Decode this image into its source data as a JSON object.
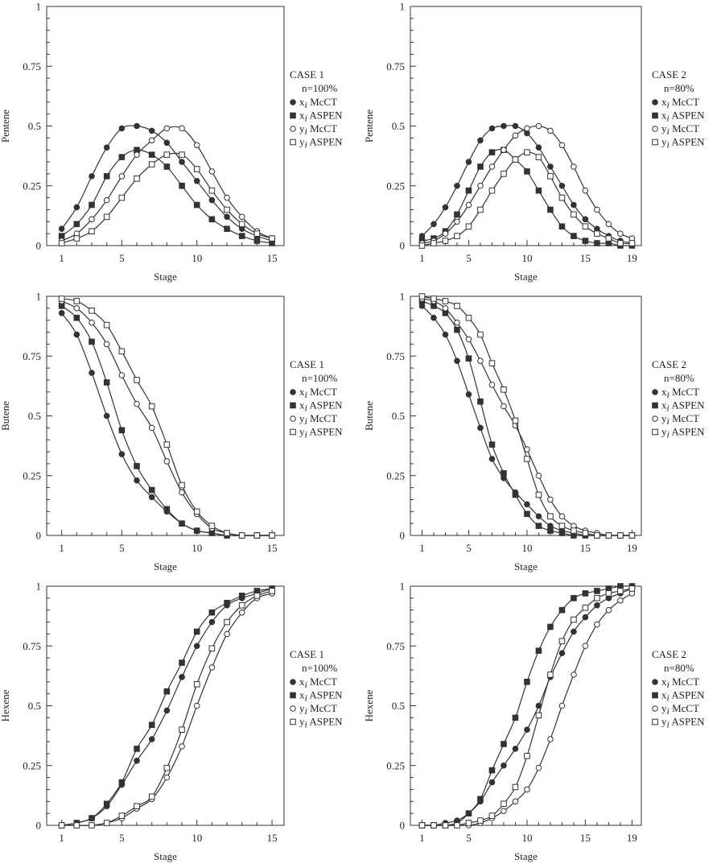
{
  "chart_data": [
    {
      "type": "line",
      "case": "CASE 1",
      "n": "n=100%",
      "ylabel": "Pentene",
      "xlabel": "Stage",
      "xlim": [
        0,
        15.8
      ],
      "ylim": [
        0,
        1
      ],
      "xticks": [
        1,
        5,
        10,
        15
      ],
      "yticks": [
        "0",
        "0.25",
        "0.5",
        "0.75",
        "1"
      ],
      "x": [
        1,
        2,
        3,
        4,
        5,
        6,
        7,
        8,
        9,
        10,
        11,
        12,
        13,
        14,
        15
      ],
      "series": [
        {
          "name": "x_i McCT",
          "label_var": "x",
          "label_sub": "i",
          "label_rest": " McCT",
          "marker": "circle-filled",
          "values": [
            0.07,
            0.16,
            0.29,
            0.41,
            0.49,
            0.5,
            0.48,
            0.43,
            0.35,
            0.27,
            0.19,
            0.12,
            0.07,
            0.04,
            0.02
          ]
        },
        {
          "name": "x_i ASPEN",
          "label_var": "x",
          "label_sub": "i",
          "label_rest": " ASPEN",
          "marker": "square-filled",
          "values": [
            0.04,
            0.09,
            0.17,
            0.29,
            0.37,
            0.4,
            0.38,
            0.33,
            0.25,
            0.17,
            0.11,
            0.07,
            0.04,
            0.02,
            0.01
          ]
        },
        {
          "name": "y_i McCT",
          "label_var": "y",
          "label_sub": "i",
          "label_rest": " McCT",
          "marker": "circle-open",
          "values": [
            0.02,
            0.05,
            0.11,
            0.19,
            0.29,
            0.38,
            0.44,
            0.49,
            0.49,
            0.42,
            0.31,
            0.2,
            0.12,
            0.06,
            0.03
          ]
        },
        {
          "name": "y_i ASPEN",
          "label_var": "y",
          "label_sub": "i",
          "label_rest": " ASPEN",
          "marker": "square-open",
          "values": [
            0.01,
            0.03,
            0.06,
            0.12,
            0.2,
            0.28,
            0.34,
            0.38,
            0.38,
            0.32,
            0.23,
            0.15,
            0.09,
            0.05,
            0.03
          ]
        }
      ]
    },
    {
      "type": "line",
      "case": "CASE 2",
      "n": "n=80%",
      "ylabel": "Pentene",
      "xlabel": "Stage",
      "xlim": [
        0,
        19.8
      ],
      "ylim": [
        0,
        1
      ],
      "xticks": [
        1,
        5,
        10,
        15,
        19
      ],
      "yticks": [
        "0",
        "0.25",
        "0.5",
        "0.75",
        "1"
      ],
      "x": [
        1,
        2,
        3,
        4,
        5,
        6,
        7,
        8,
        9,
        10,
        11,
        12,
        13,
        14,
        15,
        16,
        17,
        18,
        19
      ],
      "series": [
        {
          "name": "x_i McCT",
          "label_var": "x",
          "label_sub": "i",
          "label_rest": " McCT",
          "marker": "circle-filled",
          "values": [
            0.04,
            0.09,
            0.16,
            0.25,
            0.35,
            0.44,
            0.49,
            0.5,
            0.5,
            0.47,
            0.41,
            0.33,
            0.25,
            0.17,
            0.11,
            0.07,
            0.04,
            0.02,
            0.01
          ]
        },
        {
          "name": "x_i ASPEN",
          "label_var": "x",
          "label_sub": "i",
          "label_rest": " ASPEN",
          "marker": "square-filled",
          "values": [
            0.02,
            0.03,
            0.06,
            0.13,
            0.23,
            0.33,
            0.39,
            0.4,
            0.36,
            0.31,
            0.23,
            0.15,
            0.08,
            0.04,
            0.02,
            0.01,
            0.01,
            0.0,
            0.0
          ]
        },
        {
          "name": "y_i McCT",
          "label_var": "y",
          "label_sub": "i",
          "label_rest": " McCT",
          "marker": "circle-open",
          "values": [
            0.01,
            0.02,
            0.05,
            0.1,
            0.17,
            0.25,
            0.33,
            0.4,
            0.46,
            0.49,
            0.5,
            0.48,
            0.42,
            0.33,
            0.23,
            0.15,
            0.09,
            0.05,
            0.03
          ]
        },
        {
          "name": "y_i ASPEN",
          "label_var": "y",
          "label_sub": "i",
          "label_rest": " ASPEN",
          "marker": "square-open",
          "values": [
            0.0,
            0.01,
            0.02,
            0.04,
            0.08,
            0.15,
            0.23,
            0.3,
            0.36,
            0.39,
            0.37,
            0.29,
            0.2,
            0.13,
            0.08,
            0.05,
            0.03,
            0.01,
            0.01
          ]
        }
      ]
    },
    {
      "type": "line",
      "case": "CASE 1",
      "n": "n=100%",
      "ylabel": "Butene",
      "xlabel": "Stage",
      "xlim": [
        0,
        15.8
      ],
      "ylim": [
        0,
        1
      ],
      "xticks": [
        1,
        5,
        10,
        15
      ],
      "yticks": [
        "0",
        "0.25",
        "0.5",
        "0.75",
        "1"
      ],
      "x": [
        1,
        2,
        3,
        4,
        5,
        6,
        7,
        8,
        9,
        10,
        11,
        12,
        13,
        14,
        15
      ],
      "series": [
        {
          "name": "x_i McCT",
          "label_var": "x",
          "label_sub": "i",
          "label_rest": " McCT",
          "marker": "circle-filled",
          "values": [
            0.93,
            0.84,
            0.68,
            0.5,
            0.34,
            0.23,
            0.16,
            0.1,
            0.05,
            0.02,
            0.01,
            0.0,
            0.0,
            0.0,
            0.0
          ]
        },
        {
          "name": "x_i ASPEN",
          "label_var": "x",
          "label_sub": "i",
          "label_rest": " ASPEN",
          "marker": "square-filled",
          "values": [
            0.96,
            0.91,
            0.81,
            0.64,
            0.44,
            0.29,
            0.19,
            0.11,
            0.05,
            0.02,
            0.01,
            0.0,
            0.0,
            0.0,
            0.0
          ]
        },
        {
          "name": "y_i McCT",
          "label_var": "y",
          "label_sub": "i",
          "label_rest": " McCT",
          "marker": "circle-open",
          "values": [
            0.98,
            0.95,
            0.89,
            0.8,
            0.67,
            0.55,
            0.45,
            0.31,
            0.18,
            0.09,
            0.03,
            0.01,
            0.0,
            0.0,
            0.0
          ]
        },
        {
          "name": "y_i ASPEN",
          "label_var": "y",
          "label_sub": "i",
          "label_rest": " ASPEN",
          "marker": "square-open",
          "values": [
            0.99,
            0.98,
            0.94,
            0.88,
            0.77,
            0.65,
            0.54,
            0.38,
            0.21,
            0.1,
            0.04,
            0.01,
            0.0,
            0.0,
            0.0
          ]
        }
      ]
    },
    {
      "type": "line",
      "case": "CASE 2",
      "n": "n=80%",
      "ylabel": "Butene",
      "xlabel": "Stage",
      "xlim": [
        0,
        19.8
      ],
      "ylim": [
        0,
        1
      ],
      "xticks": [
        1,
        5,
        10,
        15,
        19
      ],
      "yticks": [
        "0",
        "0.25",
        "0.5",
        "0.75",
        "1"
      ],
      "x": [
        1,
        2,
        3,
        4,
        5,
        6,
        7,
        8,
        9,
        10,
        11,
        12,
        13,
        14,
        15,
        16,
        17,
        18,
        19
      ],
      "series": [
        {
          "name": "x_i McCT",
          "label_var": "x",
          "label_sub": "i",
          "label_rest": " McCT",
          "marker": "circle-filled",
          "values": [
            0.96,
            0.91,
            0.84,
            0.73,
            0.59,
            0.45,
            0.32,
            0.24,
            0.18,
            0.13,
            0.08,
            0.04,
            0.02,
            0.01,
            0.0,
            0.0,
            0.0,
            0.0,
            0.0
          ]
        },
        {
          "name": "x_i ASPEN",
          "label_var": "x",
          "label_sub": "i",
          "label_rest": " ASPEN",
          "marker": "square-filled",
          "values": [
            0.98,
            0.96,
            0.93,
            0.86,
            0.74,
            0.56,
            0.38,
            0.26,
            0.17,
            0.09,
            0.04,
            0.02,
            0.01,
            0.0,
            0.0,
            0.0,
            0.0,
            0.0,
            0.0
          ]
        },
        {
          "name": "y_i McCT",
          "label_var": "y",
          "label_sub": "i",
          "label_rest": " McCT",
          "marker": "circle-open",
          "values": [
            0.99,
            0.98,
            0.95,
            0.89,
            0.82,
            0.73,
            0.63,
            0.54,
            0.46,
            0.36,
            0.25,
            0.15,
            0.08,
            0.04,
            0.02,
            0.01,
            0.0,
            0.0,
            0.0
          ]
        },
        {
          "name": "y_i ASPEN",
          "label_var": "y",
          "label_sub": "i",
          "label_rest": " ASPEN",
          "marker": "square-open",
          "values": [
            1.0,
            0.99,
            0.98,
            0.96,
            0.91,
            0.84,
            0.72,
            0.61,
            0.48,
            0.32,
            0.17,
            0.08,
            0.04,
            0.02,
            0.01,
            0.0,
            0.0,
            0.0,
            0.0
          ]
        }
      ]
    },
    {
      "type": "line",
      "case": "CASE 1",
      "n": "n=100%",
      "ylabel": "Hexene",
      "xlabel": "Stage",
      "xlim": [
        0,
        15.8
      ],
      "ylim": [
        0,
        1
      ],
      "xticks": [
        1,
        5,
        10,
        15
      ],
      "yticks": [
        "0",
        "0.25",
        "0.5",
        "0.75",
        "1"
      ],
      "x": [
        1,
        2,
        3,
        4,
        5,
        6,
        7,
        8,
        9,
        10,
        11,
        12,
        13,
        14,
        15
      ],
      "series": [
        {
          "name": "x_i McCT",
          "label_var": "x",
          "label_sub": "i",
          "label_rest": " McCT",
          "marker": "circle-filled",
          "values": [
            0.0,
            0.01,
            0.03,
            0.08,
            0.17,
            0.27,
            0.36,
            0.48,
            0.62,
            0.75,
            0.85,
            0.92,
            0.95,
            0.97,
            0.99
          ]
        },
        {
          "name": "x_i ASPEN",
          "label_var": "x",
          "label_sub": "i",
          "label_rest": " ASPEN",
          "marker": "square-filled",
          "values": [
            0.0,
            0.01,
            0.03,
            0.09,
            0.18,
            0.32,
            0.42,
            0.56,
            0.68,
            0.81,
            0.89,
            0.93,
            0.96,
            0.98,
            0.99
          ]
        },
        {
          "name": "y_i McCT",
          "label_var": "y",
          "label_sub": "i",
          "label_rest": " McCT",
          "marker": "circle-open",
          "values": [
            0.0,
            0.0,
            0.0,
            0.01,
            0.03,
            0.07,
            0.11,
            0.2,
            0.33,
            0.5,
            0.66,
            0.8,
            0.89,
            0.95,
            0.97
          ]
        },
        {
          "name": "y_i ASPEN",
          "label_var": "y",
          "label_sub": "i",
          "label_rest": " ASPEN",
          "marker": "square-open",
          "values": [
            0.0,
            0.0,
            0.0,
            0.01,
            0.04,
            0.08,
            0.12,
            0.24,
            0.4,
            0.59,
            0.74,
            0.85,
            0.92,
            0.96,
            0.98
          ]
        }
      ]
    },
    {
      "type": "line",
      "case": "CASE 2",
      "n": "n=80%",
      "ylabel": "Hexene",
      "xlabel": "Stage",
      "xlim": [
        0,
        19.8
      ],
      "ylim": [
        0,
        1
      ],
      "xticks": [
        1,
        5,
        10,
        15,
        19
      ],
      "yticks": [
        "0",
        "0.25",
        "0.5",
        "0.75",
        "1"
      ],
      "x": [
        1,
        2,
        3,
        4,
        5,
        6,
        7,
        8,
        9,
        10,
        11,
        12,
        13,
        14,
        15,
        16,
        17,
        18,
        19
      ],
      "series": [
        {
          "name": "x_i McCT",
          "label_var": "x",
          "label_sub": "i",
          "label_rest": " McCT",
          "marker": "circle-filled",
          "values": [
            0.0,
            0.0,
            0.01,
            0.02,
            0.05,
            0.1,
            0.18,
            0.25,
            0.32,
            0.4,
            0.5,
            0.62,
            0.72,
            0.81,
            0.87,
            0.92,
            0.95,
            0.97,
            0.99
          ]
        },
        {
          "name": "x_i ASPEN",
          "label_var": "x",
          "label_sub": "i",
          "label_rest": " ASPEN",
          "marker": "square-filled",
          "values": [
            0.0,
            0.0,
            0.0,
            0.01,
            0.05,
            0.11,
            0.23,
            0.34,
            0.45,
            0.6,
            0.73,
            0.83,
            0.9,
            0.95,
            0.97,
            0.98,
            0.99,
            1.0,
            1.0
          ]
        },
        {
          "name": "y_i McCT",
          "label_var": "y",
          "label_sub": "i",
          "label_rest": " McCT",
          "marker": "circle-open",
          "values": [
            0.0,
            0.0,
            0.0,
            0.0,
            0.0,
            0.01,
            0.03,
            0.06,
            0.1,
            0.15,
            0.24,
            0.36,
            0.5,
            0.63,
            0.75,
            0.84,
            0.9,
            0.94,
            0.97
          ]
        },
        {
          "name": "y_i ASPEN",
          "label_var": "y",
          "label_sub": "i",
          "label_rest": " ASPEN",
          "marker": "square-open",
          "values": [
            0.0,
            0.0,
            0.0,
            0.0,
            0.01,
            0.02,
            0.04,
            0.09,
            0.16,
            0.29,
            0.46,
            0.63,
            0.77,
            0.86,
            0.91,
            0.95,
            0.97,
            0.98,
            0.99
          ]
        }
      ]
    }
  ]
}
